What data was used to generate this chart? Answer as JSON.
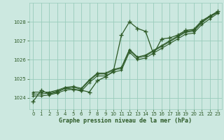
{
  "title": "Graphe pression niveau de la mer (hPa)",
  "bg_color": "#cce8e0",
  "grid_color": "#99ccbb",
  "line_color": "#2d5a27",
  "xlim": [
    -0.5,
    23.5
  ],
  "ylim": [
    1023.4,
    1029.0
  ],
  "yticks": [
    1024,
    1025,
    1026,
    1027,
    1028
  ],
  "xticks": [
    0,
    1,
    2,
    3,
    4,
    5,
    6,
    7,
    8,
    9,
    10,
    11,
    12,
    13,
    14,
    15,
    16,
    17,
    18,
    19,
    20,
    21,
    22,
    23
  ],
  "series1": [
    1023.8,
    1024.4,
    1024.2,
    1024.3,
    1024.5,
    1024.45,
    1024.4,
    1024.3,
    1024.9,
    1025.1,
    1025.4,
    1027.3,
    1028.0,
    1027.65,
    1027.5,
    1026.3,
    1027.1,
    1027.15,
    1027.3,
    1027.55,
    1027.6,
    1028.05,
    1028.3,
    1028.55
  ],
  "series2": [
    1024.3,
    1024.3,
    1024.3,
    1024.4,
    1024.55,
    1024.6,
    1024.5,
    1024.95,
    1025.3,
    1025.3,
    1025.5,
    1025.6,
    1026.55,
    1026.15,
    1026.25,
    1026.5,
    1026.75,
    1027.0,
    1027.25,
    1027.5,
    1027.55,
    1028.0,
    1028.3,
    1028.5
  ],
  "series3": [
    1024.2,
    1024.2,
    1024.25,
    1024.35,
    1024.5,
    1024.55,
    1024.45,
    1024.9,
    1025.25,
    1025.25,
    1025.45,
    1025.55,
    1026.5,
    1026.1,
    1026.2,
    1026.45,
    1026.7,
    1026.95,
    1027.2,
    1027.45,
    1027.5,
    1027.95,
    1028.25,
    1028.5
  ],
  "series4": [
    1024.1,
    1024.1,
    1024.15,
    1024.25,
    1024.4,
    1024.45,
    1024.35,
    1024.8,
    1025.15,
    1025.15,
    1025.35,
    1025.45,
    1026.4,
    1026.0,
    1026.1,
    1026.35,
    1026.6,
    1026.85,
    1027.1,
    1027.35,
    1027.4,
    1027.85,
    1028.15,
    1028.45
  ]
}
